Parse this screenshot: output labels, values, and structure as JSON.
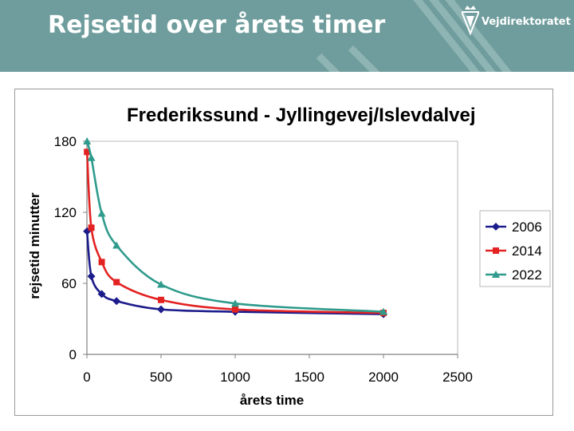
{
  "slide": {
    "title": "Rejsetid over årets timer",
    "logo_text": "Vejdirektoratet",
    "banner_color": "#6f9c9c"
  },
  "chart_data": {
    "type": "line",
    "title": "Frederikssund - Jyllingevej/Islevdalvej",
    "xlabel": "årets time",
    "ylabel": "rejsetid minutter",
    "xlim": [
      0,
      2500
    ],
    "ylim": [
      0,
      180
    ],
    "xticks": [
      0,
      500,
      1000,
      1500,
      2000,
      2500
    ],
    "yticks": [
      0,
      60,
      120,
      180
    ],
    "grid": false,
    "legend": "right",
    "series": [
      {
        "name": "2006",
        "color": "#1c1c8c",
        "marker": "diamond",
        "x": [
          1,
          30,
          100,
          200,
          500,
          1000,
          2000
        ],
        "y": [
          104,
          66,
          51,
          45,
          38,
          36,
          34
        ]
      },
      {
        "name": "2014",
        "color": "#e32222",
        "marker": "square",
        "x": [
          1,
          30,
          100,
          200,
          500,
          1000,
          2000
        ],
        "y": [
          171,
          107,
          78,
          61,
          46,
          38,
          35
        ]
      },
      {
        "name": "2022",
        "color": "#2f9b8c",
        "marker": "triangle",
        "x": [
          1,
          30,
          100,
          200,
          500,
          1000,
          2000
        ],
        "y": [
          180,
          166,
          119,
          92,
          59,
          43,
          36
        ]
      }
    ]
  }
}
